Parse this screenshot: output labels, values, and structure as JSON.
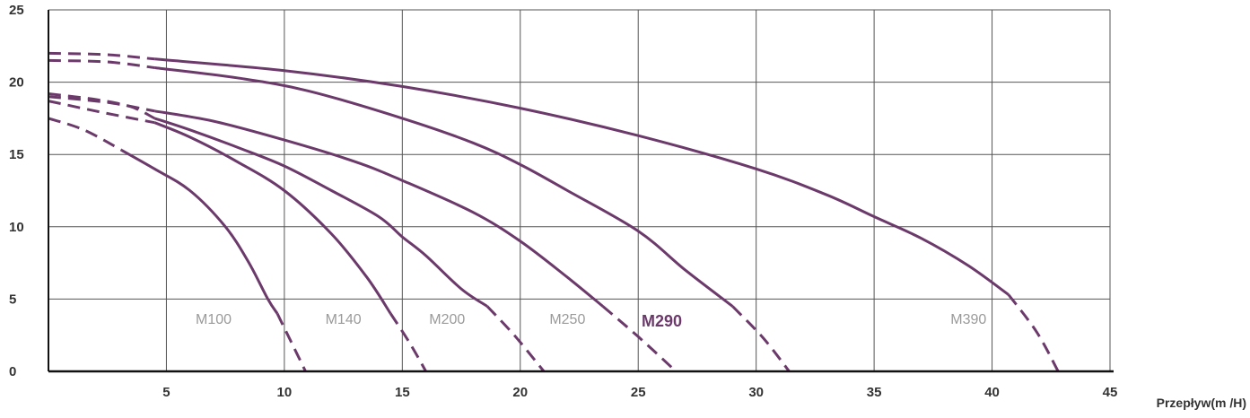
{
  "chart_data": {
    "type": "line",
    "title": "",
    "xlabel": "Przepływ(m /H)",
    "ylabel": "",
    "xlim": [
      0,
      45
    ],
    "ylim": [
      0,
      25
    ],
    "x_ticks": [
      5,
      10,
      15,
      20,
      25,
      30,
      35,
      40,
      45
    ],
    "y_ticks": [
      0,
      5,
      10,
      15,
      20,
      25
    ],
    "grid": true,
    "colors": {
      "curve": "#6b3a6b",
      "grid": "#555555",
      "axis": "#111111"
    },
    "series": [
      {
        "name": "M100",
        "highlight": false,
        "solid": [
          [
            3.1,
            15.3
          ],
          [
            4.5,
            14.0
          ],
          [
            6.0,
            12.5
          ],
          [
            7.5,
            10.0
          ],
          [
            8.5,
            7.5
          ],
          [
            9.3,
            5.0
          ],
          [
            9.7,
            4.0
          ]
        ],
        "dashed_start": [
          [
            0,
            17.5
          ],
          [
            1.5,
            16.7
          ],
          [
            3.1,
            15.3
          ]
        ],
        "dashed_end": [
          [
            9.7,
            4.0
          ],
          [
            10.3,
            2.0
          ],
          [
            10.9,
            0
          ]
        ]
      },
      {
        "name": "M140",
        "highlight": false,
        "solid": [
          [
            4.5,
            17.2
          ],
          [
            6.0,
            16.2
          ],
          [
            8.0,
            14.5
          ],
          [
            10.0,
            12.5
          ],
          [
            12.0,
            9.5
          ],
          [
            13.5,
            6.5
          ],
          [
            14.5,
            4.0
          ]
        ],
        "dashed_start": [
          [
            0,
            18.7
          ],
          [
            2.0,
            18.0
          ],
          [
            4.5,
            17.2
          ]
        ],
        "dashed_end": [
          [
            14.5,
            4.0
          ],
          [
            15.3,
            2.0
          ],
          [
            16.0,
            0
          ]
        ]
      },
      {
        "name": "M200",
        "highlight": false,
        "solid": [
          [
            4.5,
            17.5
          ],
          [
            6.0,
            16.7
          ],
          [
            8.0,
            15.5
          ],
          [
            10.0,
            14.2
          ],
          [
            12.0,
            12.5
          ],
          [
            14.0,
            10.7
          ],
          [
            15.0,
            9.3
          ],
          [
            16.0,
            8.0
          ],
          [
            17.5,
            5.7
          ],
          [
            18.6,
            4.5
          ]
        ],
        "dashed_start": [
          [
            0,
            19.2
          ],
          [
            2.0,
            18.8
          ],
          [
            3.5,
            18.3
          ],
          [
            4.5,
            17.5
          ]
        ],
        "dashed_end": [
          [
            18.6,
            4.5
          ],
          [
            19.8,
            2.4
          ],
          [
            21.0,
            0
          ]
        ]
      },
      {
        "name": "M250",
        "highlight": false,
        "solid": [
          [
            4.5,
            18.0
          ],
          [
            7.0,
            17.3
          ],
          [
            10.0,
            16.0
          ],
          [
            13.0,
            14.5
          ],
          [
            15.0,
            13.2
          ],
          [
            18.0,
            11.0
          ],
          [
            20.0,
            9.0
          ],
          [
            22.0,
            6.5
          ],
          [
            23.5,
            4.5
          ]
        ],
        "dashed_start": [
          [
            0,
            19.0
          ],
          [
            2.5,
            18.6
          ],
          [
            4.5,
            18.0
          ]
        ],
        "dashed_end": [
          [
            23.5,
            4.5
          ],
          [
            25.0,
            2.4
          ],
          [
            26.6,
            0
          ]
        ]
      },
      {
        "name": "M290",
        "highlight": true,
        "solid": [
          [
            4.5,
            21.0
          ],
          [
            8.0,
            20.3
          ],
          [
            11.0,
            19.4
          ],
          [
            15.0,
            17.5
          ],
          [
            18.0,
            15.8
          ],
          [
            20.0,
            14.3
          ],
          [
            22.0,
            12.5
          ],
          [
            25.0,
            9.7
          ],
          [
            27.0,
            7.0
          ],
          [
            29.0,
            4.5
          ]
        ],
        "dashed_start": [
          [
            0,
            21.5
          ],
          [
            2.5,
            21.4
          ],
          [
            4.5,
            21.0
          ]
        ],
        "dashed_end": [
          [
            29.0,
            4.5
          ],
          [
            30.3,
            2.3
          ],
          [
            31.4,
            0
          ]
        ]
      },
      {
        "name": "M390",
        "highlight": false,
        "solid": [
          [
            4.5,
            21.6
          ],
          [
            10.0,
            20.8
          ],
          [
            15.0,
            19.7
          ],
          [
            20.0,
            18.2
          ],
          [
            25.0,
            16.3
          ],
          [
            30.0,
            14.0
          ],
          [
            33.0,
            12.2
          ],
          [
            35.0,
            10.7
          ],
          [
            37.0,
            9.2
          ],
          [
            39.0,
            7.3
          ],
          [
            40.7,
            5.3
          ]
        ],
        "dashed_start": [
          [
            0,
            22.0
          ],
          [
            2.5,
            21.9
          ],
          [
            4.5,
            21.6
          ]
        ],
        "dashed_end": [
          [
            40.7,
            5.3
          ],
          [
            41.9,
            2.7
          ],
          [
            42.8,
            0
          ]
        ]
      }
    ],
    "series_label_positions": [
      {
        "name": "M100",
        "x": 7.0,
        "y": 3.3
      },
      {
        "name": "M140",
        "x": 12.5,
        "y": 3.3
      },
      {
        "name": "M200",
        "x": 16.9,
        "y": 3.3
      },
      {
        "name": "M250",
        "x": 22.0,
        "y": 3.3
      },
      {
        "name": "M290",
        "x": 26.0,
        "y": 3.1
      },
      {
        "name": "M390",
        "x": 39.0,
        "y": 3.3
      }
    ]
  }
}
